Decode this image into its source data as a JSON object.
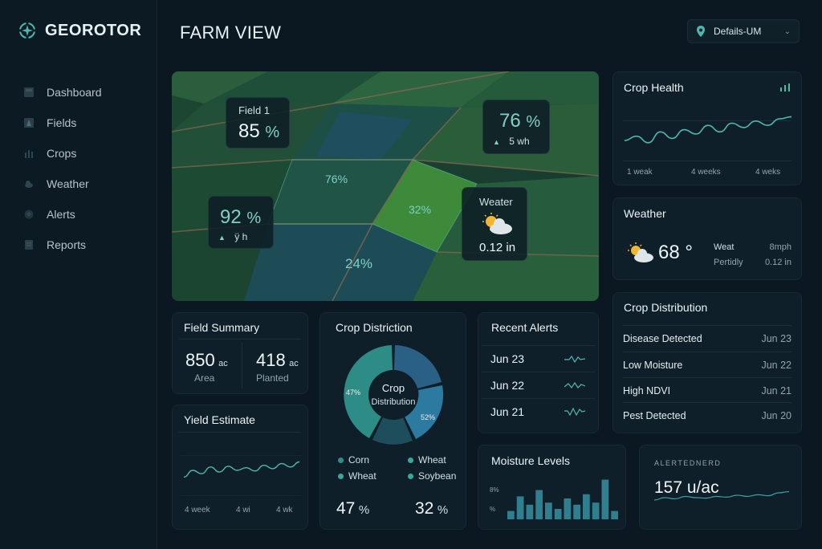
{
  "app": {
    "name": "GEOROTOR"
  },
  "header": {
    "title": "FARM VIEW",
    "profile_select": "Defails-UM"
  },
  "sidebar": {
    "items": [
      {
        "label": "Dashboard",
        "icon": "dashboard-icon"
      },
      {
        "label": "Fields",
        "icon": "fields-icon"
      },
      {
        "label": "Crops",
        "icon": "crops-icon"
      },
      {
        "label": "Weather",
        "icon": "weather-icon"
      },
      {
        "label": "Alerts",
        "icon": "alerts-icon"
      },
      {
        "label": "Reports",
        "icon": "reports-icon"
      }
    ]
  },
  "map": {
    "field1_label": "Field 1",
    "field1_value": "85",
    "top_right_value": "76",
    "top_right_sub": "5 wh",
    "left_value": "92",
    "left_sub": "ÿ h",
    "weather_label": "Weater",
    "weather_value": "0.12 in",
    "field_pct_a": "76%",
    "field_pct_b": "32%",
    "field_pct_c": "24%",
    "unit": "%"
  },
  "crop_health": {
    "title": "Crop Health",
    "x_labels": [
      "1 weak",
      "4 weeks",
      "4 weks"
    ],
    "trend": [
      0.35,
      0.45,
      0.3,
      0.55,
      0.4,
      0.6,
      0.5,
      0.7,
      0.55,
      0.75,
      0.65,
      0.8,
      0.7,
      0.85,
      0.9
    ]
  },
  "weather": {
    "title": "Weather",
    "temp": "68",
    "deg": "°",
    "k1": "Weat",
    "v1": "8mph",
    "k2": "Pertidly",
    "v2": "0.12 in"
  },
  "crop_distribution_list": {
    "title": "Crop Distribution",
    "rows": [
      {
        "label": "Disease Detected",
        "date": "Jun 23"
      },
      {
        "label": "Low Moisture",
        "date": "Jun 22"
      },
      {
        "label": "High NDVI",
        "date": "Jun 21"
      },
      {
        "label": "Pest Detected",
        "date": "Jun 20"
      }
    ]
  },
  "field_summary": {
    "title": "Field Summary",
    "area_value": "850",
    "planted_value": "418",
    "unit": "ac",
    "area_label": "Area",
    "planted_label": "Planted"
  },
  "yield": {
    "title": "Yield Estimate",
    "x_labels": [
      "4 week",
      "4 wi",
      "4 wk"
    ],
    "trend": [
      0.3,
      0.5,
      0.4,
      0.6,
      0.45,
      0.62,
      0.5,
      0.58,
      0.48,
      0.65,
      0.55,
      0.7,
      0.6,
      0.75
    ]
  },
  "donut": {
    "title": "Crop Distriction",
    "center_line1": "Crop",
    "center_line2": "Distribution",
    "label_left": "47%",
    "label_right": "52%",
    "legend": [
      {
        "label": "Corn",
        "color": "#2f8f86"
      },
      {
        "label": "Wheat",
        "color": "#3aa79c"
      },
      {
        "label": "Wheat",
        "color": "#3aa79c"
      },
      {
        "label": "Soybean",
        "color": "#3aa79c"
      }
    ],
    "stat_left": "47",
    "stat_right": "32",
    "unit": "%"
  },
  "recent_alerts": {
    "title": "Recent Alerts",
    "rows": [
      {
        "date": "Jun 23"
      },
      {
        "date": "Jun 22"
      },
      {
        "date": "Jun 21"
      }
    ]
  },
  "moisture": {
    "title": "Moisture Levels",
    "axis_top": "8%",
    "axis_bottom": "%",
    "bars": [
      0.2,
      0.55,
      0.35,
      0.7,
      0.4,
      0.25,
      0.5,
      0.35,
      0.6,
      0.4,
      0.95,
      0.2
    ]
  },
  "kpi": {
    "caption": "ALERTEDNERD",
    "value": "157 u/ac",
    "trend": [
      0.4,
      0.5,
      0.45,
      0.55,
      0.5,
      0.48,
      0.55,
      0.52,
      0.6,
      0.55,
      0.62,
      0.58,
      0.7,
      0.75
    ]
  },
  "colors": {
    "accent": "#4fb8ae",
    "panel": "#0f1f29",
    "background": "#0b1822"
  }
}
